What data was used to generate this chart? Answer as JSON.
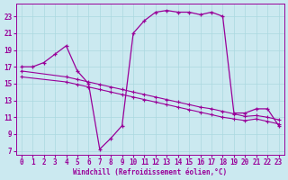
{
  "xlabel": "Windchill (Refroidissement éolien,°C)",
  "xlim": [
    -0.5,
    23.5
  ],
  "ylim": [
    6.5,
    24.5
  ],
  "xticks": [
    0,
    1,
    2,
    3,
    4,
    5,
    6,
    7,
    8,
    9,
    10,
    11,
    12,
    13,
    14,
    15,
    16,
    17,
    18,
    19,
    20,
    21,
    22,
    23
  ],
  "yticks": [
    7,
    9,
    11,
    13,
    15,
    17,
    19,
    21,
    23
  ],
  "bg_color": "#cbe9f0",
  "line_color": "#990099",
  "grid_color": "#aad8e0",
  "curve1_x": [
    0,
    1,
    2,
    3,
    4,
    5,
    6,
    7,
    8,
    9,
    10,
    11,
    12,
    13,
    14,
    15,
    16,
    17,
    18,
    19,
    20,
    21,
    22,
    23
  ],
  "curve1_y": [
    17,
    17,
    17.5,
    18.5,
    19.5,
    16.5,
    15.0,
    7.2,
    8.5,
    10.0,
    21.0,
    22.5,
    23.5,
    23.7,
    23.5,
    23.5,
    23.2,
    23.5,
    23.0,
    11.5,
    11.5,
    12.0,
    12.0,
    10.0
  ],
  "curve2_x": [
    0,
    4,
    5,
    6,
    7,
    8,
    9,
    10,
    11,
    12,
    13,
    14,
    15,
    16,
    17,
    18,
    19,
    20,
    21,
    22,
    23
  ],
  "curve2_y": [
    16.5,
    15.8,
    15.5,
    15.2,
    14.9,
    14.6,
    14.3,
    14.0,
    13.7,
    13.4,
    13.1,
    12.8,
    12.5,
    12.2,
    12.0,
    11.7,
    11.4,
    11.1,
    11.2,
    11.0,
    10.7
  ],
  "curve3_x": [
    0,
    4,
    5,
    6,
    7,
    8,
    9,
    10,
    11,
    12,
    13,
    14,
    15,
    16,
    17,
    18,
    19,
    20,
    21,
    22,
    23
  ],
  "curve3_y": [
    15.8,
    15.2,
    14.9,
    14.6,
    14.3,
    14.0,
    13.7,
    13.4,
    13.1,
    12.8,
    12.5,
    12.2,
    11.9,
    11.6,
    11.3,
    11.0,
    10.8,
    10.6,
    10.8,
    10.5,
    10.2
  ]
}
